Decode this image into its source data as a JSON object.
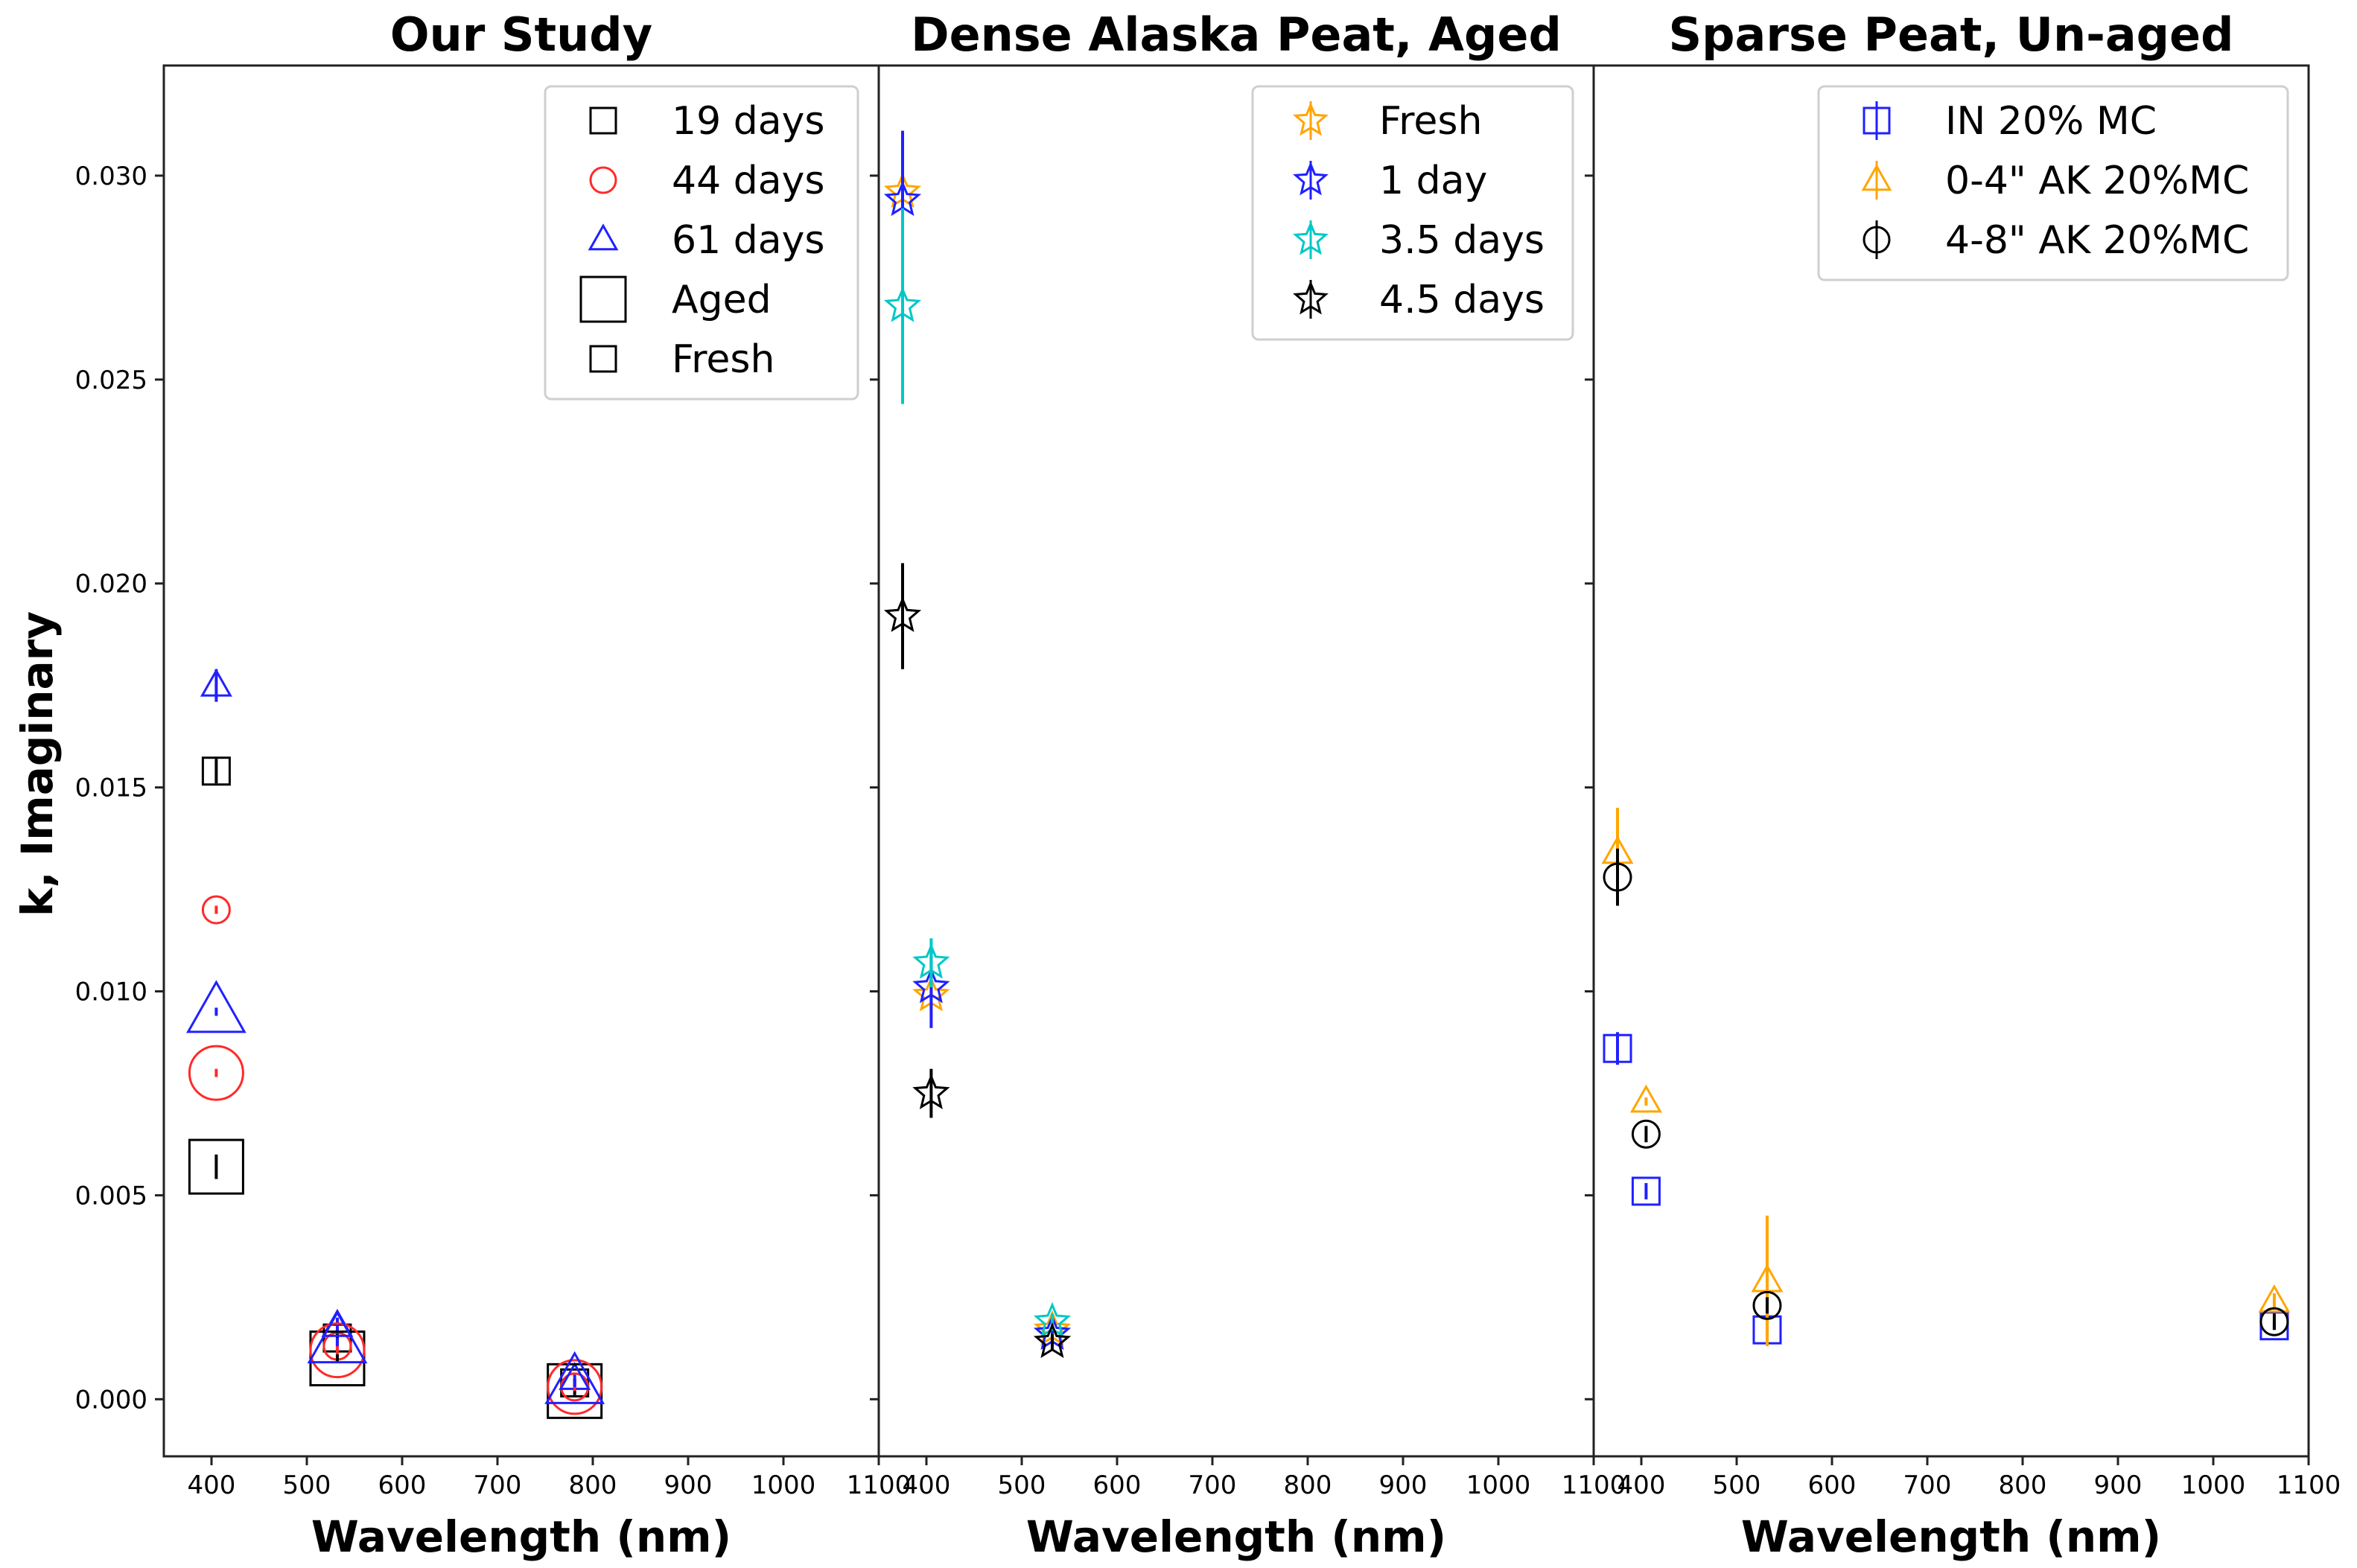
{
  "chart_data": {
    "type": "scatter",
    "ylabel": "k, Imaginary",
    "ylim": [
      -0.0014,
      0.0327
    ],
    "yticks": [
      "0.000",
      "0.005",
      "0.010",
      "0.015",
      "0.020",
      "0.025",
      "0.030"
    ],
    "ytick_values": [
      0,
      0.005,
      0.01,
      0.015,
      0.02,
      0.025,
      0.03
    ],
    "colors": {
      "black": "#000000",
      "red": "#ff2a2a",
      "blue": "#2020ff",
      "orange": "#ffa500",
      "cyan": "#00c8c8"
    },
    "panels": [
      {
        "title": "Our Study",
        "xlabel": "Wavelength (nm)",
        "xlim": [
          350,
          1100
        ],
        "xticks": [
          "400",
          "500",
          "600",
          "700",
          "800",
          "900",
          "1000",
          "1100"
        ],
        "xtick_values": [
          400,
          500,
          600,
          700,
          800,
          900,
          1000,
          1100
        ],
        "legend": [
          {
            "label": "19 days",
            "marker": "square",
            "color": "#000000",
            "size": "small"
          },
          {
            "label": "44 days",
            "marker": "circle",
            "color": "#ff2a2a",
            "size": "small"
          },
          {
            "label": "61 days",
            "marker": "triangle",
            "color": "#2020ff",
            "size": "small"
          },
          {
            "label": "Aged",
            "marker": "square",
            "color": "#000000",
            "size": "large"
          },
          {
            "label": "Fresh",
            "marker": "square",
            "color": "#000000",
            "size": "small"
          }
        ],
        "series": [
          {
            "name": "19 days Fresh",
            "marker": "square",
            "color": "#000000",
            "size": "small",
            "points": [
              {
                "x": 405,
                "y": 0.0154,
                "err": 0.0003
              },
              {
                "x": 532,
                "y": 0.0015,
                "err": 0.0002
              },
              {
                "x": 781,
                "y": 0.0004,
                "err": 0.0001
              }
            ]
          },
          {
            "name": "44 days Fresh",
            "marker": "circle",
            "color": "#ff2a2a",
            "size": "small",
            "points": [
              {
                "x": 405,
                "y": 0.012,
                "err": 0.0001
              },
              {
                "x": 532,
                "y": 0.0013,
                "err": 0.0001
              },
              {
                "x": 781,
                "y": 0.0003,
                "err": 0.0001
              }
            ]
          },
          {
            "name": "61 days Fresh",
            "marker": "triangle",
            "color": "#2020ff",
            "size": "small",
            "points": [
              {
                "x": 405,
                "y": 0.0175,
                "err": 0.0004
              },
              {
                "x": 532,
                "y": 0.0018,
                "err": 0.0002
              },
              {
                "x": 781,
                "y": 0.0005,
                "err": 0.0001
              }
            ]
          },
          {
            "name": "19 days Aged",
            "marker": "square",
            "color": "#000000",
            "size": "large",
            "points": [
              {
                "x": 405,
                "y": 0.0057,
                "err": 0.0003
              },
              {
                "x": 532,
                "y": 0.001,
                "err": 0.0001
              },
              {
                "x": 781,
                "y": 0.0002,
                "err": 0.0001
              }
            ]
          },
          {
            "name": "44 days Aged",
            "marker": "circle",
            "color": "#ff2a2a",
            "size": "large",
            "points": [
              {
                "x": 405,
                "y": 0.008,
                "err": 0.0001
              },
              {
                "x": 532,
                "y": 0.0012,
                "err": 0.0001
              },
              {
                "x": 781,
                "y": 0.0003,
                "err": 0.0001
              }
            ]
          },
          {
            "name": "61 days Aged",
            "marker": "triangle",
            "color": "#2020ff",
            "size": "large",
            "points": [
              {
                "x": 405,
                "y": 0.0095,
                "err": 0.0001
              },
              {
                "x": 532,
                "y": 0.0014,
                "err": 0.0001
              },
              {
                "x": 781,
                "y": 0.0004,
                "err": 0.0001
              }
            ]
          }
        ]
      },
      {
        "title": "Dense Alaska Peat, Aged",
        "xlabel": "Wavelength (nm)",
        "xlim": [
          350,
          1100
        ],
        "xticks": [
          "400",
          "500",
          "600",
          "700",
          "800",
          "900",
          "1000",
          "1100"
        ],
        "xtick_values": [
          400,
          500,
          600,
          700,
          800,
          900,
          1000,
          1100
        ],
        "legend": [
          {
            "label": "Fresh",
            "marker": "star",
            "color": "#ffa500",
            "size": "small"
          },
          {
            "label": "1 day",
            "marker": "star",
            "color": "#2020ff",
            "size": "small"
          },
          {
            "label": "3.5 days",
            "marker": "star",
            "color": "#00c8c8",
            "size": "small"
          },
          {
            "label": "4.5 days",
            "marker": "star",
            "color": "#000000",
            "size": "small"
          }
        ],
        "series": [
          {
            "name": "Fresh",
            "marker": "star",
            "color": "#ffa500",
            "size": "small",
            "points": [
              {
                "x": 375,
                "y": 0.0296,
                "err": 0.0005
              },
              {
                "x": 405,
                "y": 0.0099,
                "err": 0.0004
              },
              {
                "x": 532,
                "y": 0.0017,
                "err": 0.0002
              }
            ]
          },
          {
            "name": "1 day",
            "marker": "star",
            "color": "#2020ff",
            "size": "small",
            "points": [
              {
                "x": 375,
                "y": 0.0294,
                "err": 0.0017
              },
              {
                "x": 405,
                "y": 0.0101,
                "err": 0.001
              },
              {
                "x": 532,
                "y": 0.0016,
                "err": 0.0002
              }
            ]
          },
          {
            "name": "3.5 days",
            "marker": "star",
            "color": "#00c8c8",
            "size": "small",
            "points": [
              {
                "x": 375,
                "y": 0.0268,
                "err": 0.0024
              },
              {
                "x": 405,
                "y": 0.0107,
                "err": 0.0006
              },
              {
                "x": 532,
                "y": 0.0019,
                "err": 0.0002
              }
            ]
          },
          {
            "name": "4.5 days",
            "marker": "star",
            "color": "#000000",
            "size": "small",
            "points": [
              {
                "x": 375,
                "y": 0.0192,
                "err": 0.0013
              },
              {
                "x": 405,
                "y": 0.0075,
                "err": 0.0006
              },
              {
                "x": 532,
                "y": 0.0014,
                "err": 0.0002
              }
            ]
          }
        ]
      },
      {
        "title": "Sparse Peat, Un-aged",
        "xlabel": "Wavelength (nm)",
        "xlim": [
          350,
          1100
        ],
        "xticks": [
          "400",
          "500",
          "600",
          "700",
          "800",
          "900",
          "1000",
          "1100"
        ],
        "xtick_values": [
          400,
          500,
          600,
          700,
          800,
          900,
          1000,
          1100
        ],
        "legend": [
          {
            "label": "IN 20% MC",
            "marker": "square",
            "color": "#2020ff",
            "size": "small"
          },
          {
            "label": "0-4\" AK 20%MC",
            "marker": "triangle",
            "color": "#ffa500",
            "size": "small"
          },
          {
            "label": "4-8\" AK 20%MC",
            "marker": "circle",
            "color": "#000000",
            "size": "small"
          }
        ],
        "series": [
          {
            "name": "IN 20% MC",
            "marker": "square",
            "color": "#2020ff",
            "size": "small",
            "points": [
              {
                "x": 375,
                "y": 0.0086,
                "err": 0.0004
              },
              {
                "x": 405,
                "y": 0.0051,
                "err": 0.0002
              },
              {
                "x": 532,
                "y": 0.0017,
                "err": 0.0001
              },
              {
                "x": 1064,
                "y": 0.0018,
                "err": 0.0001
              }
            ]
          },
          {
            "name": "0-4\" AK 20%MC",
            "marker": "triangle",
            "color": "#ffa500",
            "size": "small",
            "points": [
              {
                "x": 375,
                "y": 0.0134,
                "err": 0.0011
              },
              {
                "x": 405,
                "y": 0.0073,
                "err": 0.0001
              },
              {
                "x": 532,
                "y": 0.0029,
                "err": 0.0016
              },
              {
                "x": 1064,
                "y": 0.0024,
                "err": 0.0002
              }
            ]
          },
          {
            "name": "4-8\" AK 20%MC",
            "marker": "circle",
            "color": "#000000",
            "size": "small",
            "points": [
              {
                "x": 375,
                "y": 0.0128,
                "err": 0.0007
              },
              {
                "x": 405,
                "y": 0.0065,
                "err": 0.0002
              },
              {
                "x": 532,
                "y": 0.0023,
                "err": 0.0002
              },
              {
                "x": 1064,
                "y": 0.0019,
                "err": 0.0002
              }
            ]
          }
        ]
      }
    ]
  }
}
